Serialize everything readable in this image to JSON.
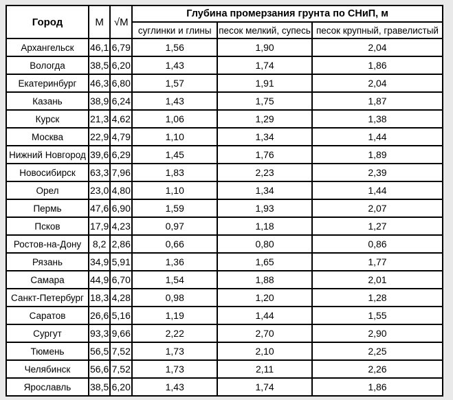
{
  "page": {
    "background_color": "#e9e9e9",
    "table_background": "#ffffff",
    "border_color": "#000000"
  },
  "table": {
    "header": {
      "city": "Город",
      "m": "М",
      "sqrt_m": "√М",
      "span_title": "Глубина промерзания грунта по СНиП, м",
      "sub_columns": [
        "суглинки и глины",
        "песок мелкий, супесь",
        "песок крупный, гравелистый"
      ]
    }
  },
  "chart_data": {
    "type": "table",
    "title": "Глубина промерзания грунта по СНиП, м",
    "columns": [
      "Город",
      "М",
      "√М",
      "суглинки и глины",
      "песок мелкий, супесь",
      "песок крупный, гравелистый"
    ],
    "rows": [
      [
        "Архангельск",
        "46,1",
        "6,79",
        "1,56",
        "1,90",
        "2,04"
      ],
      [
        "Вологда",
        "38,5",
        "6,20",
        "1,43",
        "1,74",
        "1,86"
      ],
      [
        "Екатеринбург",
        "46,3",
        "6,80",
        "1,57",
        "1,91",
        "2,04"
      ],
      [
        "Казань",
        "38,9",
        "6,24",
        "1,43",
        "1,75",
        "1,87"
      ],
      [
        "Курск",
        "21,3",
        "4,62",
        "1,06",
        "1,29",
        "1,38"
      ],
      [
        "Москва",
        "22,9",
        "4,79",
        "1,10",
        "1,34",
        "1,44"
      ],
      [
        "Нижний Новгород",
        "39,6",
        "6,29",
        "1,45",
        "1,76",
        "1,89"
      ],
      [
        "Новосибирск",
        "63,3",
        "7,96",
        "1,83",
        "2,23",
        "2,39"
      ],
      [
        "Орел",
        "23,0",
        "4,80",
        "1,10",
        "1,34",
        "1,44"
      ],
      [
        "Пермь",
        "47,6",
        "6,90",
        "1,59",
        "1,93",
        "2,07"
      ],
      [
        "Псков",
        "17,9",
        "4,23",
        "0,97",
        "1,18",
        "1,27"
      ],
      [
        "Ростов-на-Дону",
        "8,2",
        "2,86",
        "0,66",
        "0,80",
        "0,86"
      ],
      [
        "Рязань",
        "34,9",
        "5,91",
        "1,36",
        "1,65",
        "1,77"
      ],
      [
        "Самара",
        "44,9",
        "6,70",
        "1,54",
        "1,88",
        "2,01"
      ],
      [
        "Санкт-Петербург",
        "18,3",
        "4,28",
        "0,98",
        "1,20",
        "1,28"
      ],
      [
        "Саратов",
        "26,6",
        "5,16",
        "1,19",
        "1,44",
        "1,55"
      ],
      [
        "Сургут",
        "93,3",
        "9,66",
        "2,22",
        "2,70",
        "2,90"
      ],
      [
        "Тюмень",
        "56,5",
        "7,52",
        "1,73",
        "2,10",
        "2,25"
      ],
      [
        "Челябинск",
        "56,6",
        "7,52",
        "1,73",
        "2,11",
        "2,26"
      ],
      [
        "Ярославль",
        "38,5",
        "6,20",
        "1,43",
        "1,74",
        "1,86"
      ]
    ]
  }
}
